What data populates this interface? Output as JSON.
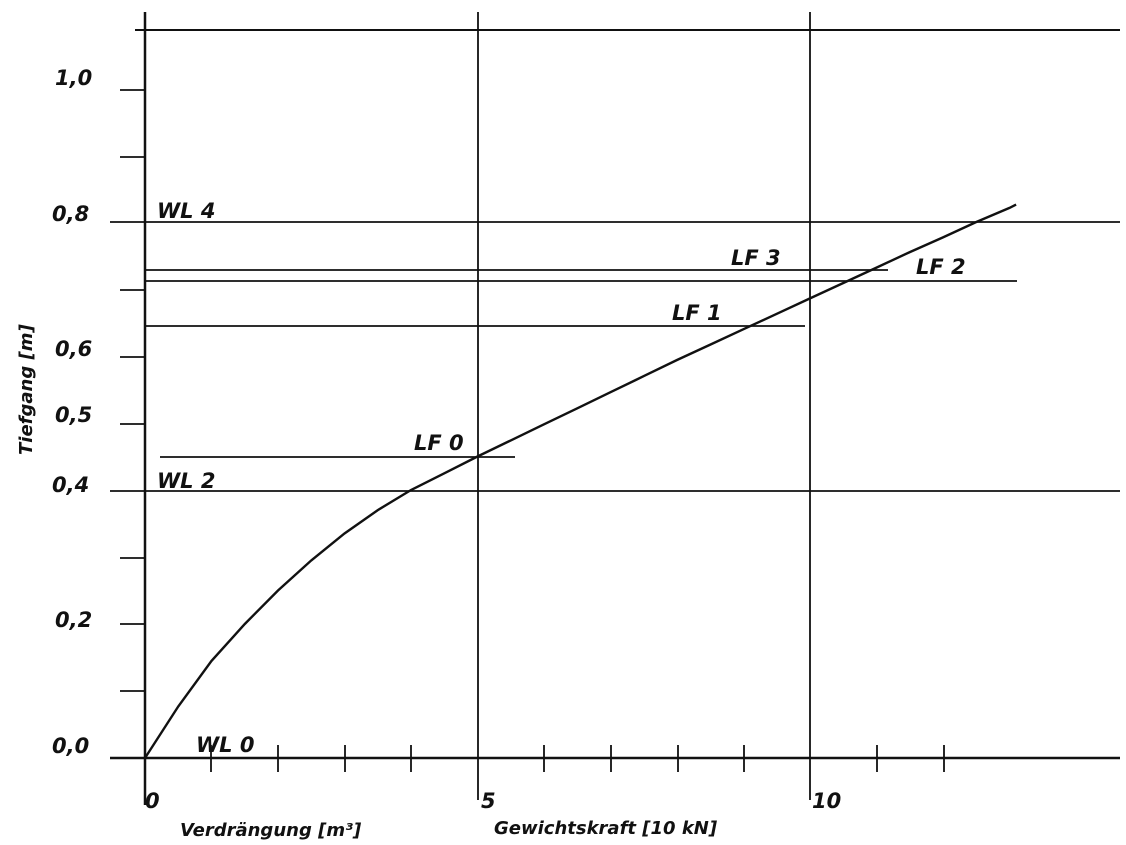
{
  "chart_data": {
    "type": "line",
    "title": "",
    "xlabel": "Verdrängung [m³]",
    "xlabel2": "Gewichtskraft [10 kN]",
    "ylabel": "Tiefgang [m]",
    "xlim": [
      0,
      14.6
    ],
    "ylim": [
      0,
      1.1
    ],
    "x_ticks": [
      {
        "value": 0,
        "label": "0"
      },
      {
        "value": 5,
        "label": "5"
      },
      {
        "value": 10,
        "label": "10"
      }
    ],
    "y_ticks": [
      {
        "value": 0.0,
        "label": "0,0"
      },
      {
        "value": 0.2,
        "label": "0,2"
      },
      {
        "value": 0.4,
        "label": "0,4"
      },
      {
        "value": 0.5,
        "label": "0,5"
      },
      {
        "value": 0.6,
        "label": "0,6"
      },
      {
        "value": 0.8,
        "label": "0,8"
      },
      {
        "value": 1.0,
        "label": "1,0"
      }
    ],
    "grid": true,
    "series": [
      {
        "x": [
          0,
          0.5,
          1,
          1.5,
          2,
          2.5,
          3,
          3.5,
          4,
          4.5,
          5,
          5.5,
          6,
          6.5,
          7,
          7.5,
          8,
          8.5,
          9,
          9.5,
          10,
          10.5,
          11,
          11.5,
          12,
          12.5,
          13,
          13.1
        ],
        "y": [
          0.0,
          0.077,
          0.145,
          0.2,
          0.25,
          0.295,
          0.335,
          0.37,
          0.4,
          0.425,
          0.45,
          0.474,
          0.498,
          0.522,
          0.546,
          0.57,
          0.594,
          0.617,
          0.64,
          0.663,
          0.686,
          0.709,
          0.732,
          0.755,
          0.777,
          0.8,
          0.821,
          0.826
        ]
      }
    ],
    "waterlines": [
      {
        "label": "WL 0",
        "y": 0.0
      },
      {
        "label": "WL 2",
        "y": 0.4
      },
      {
        "label": "WL 4",
        "y": 0.8
      }
    ],
    "load_cases": [
      {
        "label": "LF 0",
        "y": 0.45
      },
      {
        "label": "LF 1",
        "y": 0.63
      },
      {
        "label": "LF 2",
        "y": 0.7
      },
      {
        "label": "LF 3",
        "y": 0.717
      }
    ]
  }
}
